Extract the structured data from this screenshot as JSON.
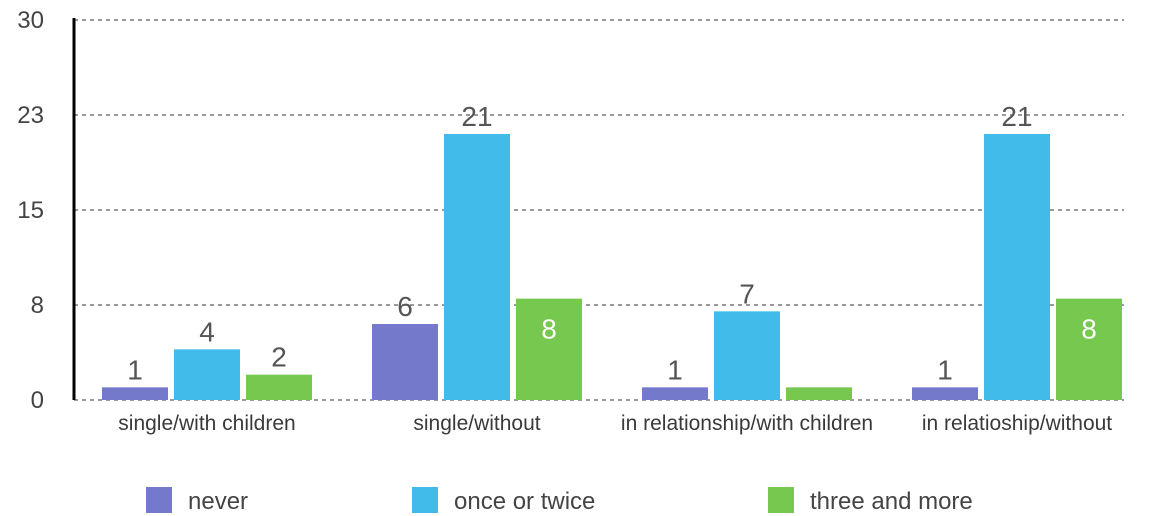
{
  "chart_data": {
    "type": "bar",
    "categories": [
      "single/with children",
      "single/without",
      "in relationship/with children",
      "in relatioship/without"
    ],
    "series": [
      {
        "name": "never",
        "color": "#7579cc",
        "values": [
          1,
          6,
          1,
          1
        ],
        "labels": [
          "1",
          "6",
          "1",
          "1"
        ]
      },
      {
        "name": "once or twice",
        "color": "#41bbea",
        "values": [
          4,
          21,
          7,
          21
        ],
        "labels": [
          "4",
          "21",
          "7",
          "21"
        ]
      },
      {
        "name": "three and more",
        "color": "#77c84f",
        "values": [
          2,
          8,
          1,
          8
        ],
        "labels": [
          "2",
          "8",
          "",
          "8"
        ]
      }
    ],
    "ylim": [
      0,
      30
    ],
    "yticks": [
      {
        "value": 0,
        "label": "0"
      },
      {
        "value": 7.5,
        "label": "8"
      },
      {
        "value": 15,
        "label": "15"
      },
      {
        "value": 22.5,
        "label": "23"
      },
      {
        "value": 30,
        "label": "30"
      }
    ],
    "grid": true,
    "legend_position": "bottom",
    "title": "",
    "xlabel": "",
    "ylabel": ""
  }
}
